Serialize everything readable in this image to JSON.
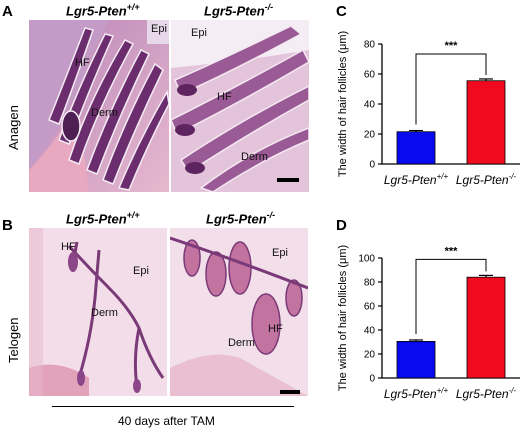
{
  "panel_letters": {
    "a": "A",
    "b": "B",
    "c": "C",
    "d": "D"
  },
  "rows": {
    "top": "Anagen",
    "bottom": "Telogen"
  },
  "genotypes": {
    "control": "Lgr5-Pten",
    "control_sup": "+/+",
    "mutant": "Lgr5-Pten",
    "mutant_sup": "-/-"
  },
  "micro_labels": {
    "a_left": {
      "epi": "Epi",
      "hf": "HF",
      "derm": "Derm"
    },
    "a_right": {
      "epi": "Epi",
      "hf": "HF",
      "derm": "Derm"
    },
    "b_left": {
      "hf": "HF",
      "epi": "Epi",
      "derm": "Derm"
    },
    "b_right": {
      "epi": "Epi",
      "hf": "HF",
      "derm": "Derm"
    }
  },
  "footer": "40 days after TAM",
  "colors": {
    "control": "#0a0af0",
    "mutant": "#f00a1e",
    "tissue_bg": "#f1dce8",
    "tissue_dark": "#7a3a78"
  },
  "chart_data": [
    {
      "type": "bar",
      "panel": "C",
      "categories": [
        "Lgr5-Pten+/+",
        "Lgr5-Pten-/-"
      ],
      "values": [
        21.5,
        55.5
      ],
      "errors": [
        0.8,
        1.2
      ],
      "ylabel": "The width of hair follicles (μm)",
      "ylim": [
        0,
        80
      ],
      "yticks": [
        0,
        20,
        40,
        60,
        80
      ],
      "significance": "***"
    },
    {
      "type": "bar",
      "panel": "D",
      "categories": [
        "Lgr5-Pten+/+",
        "Lgr5-Pten-/-"
      ],
      "values": [
        30.5,
        84
      ],
      "errors": [
        1.2,
        1.5
      ],
      "ylabel": "The width of hair follicles (μm)",
      "ylim": [
        0,
        100
      ],
      "yticks": [
        0,
        20,
        40,
        60,
        80,
        100
      ],
      "significance": "***"
    }
  ]
}
